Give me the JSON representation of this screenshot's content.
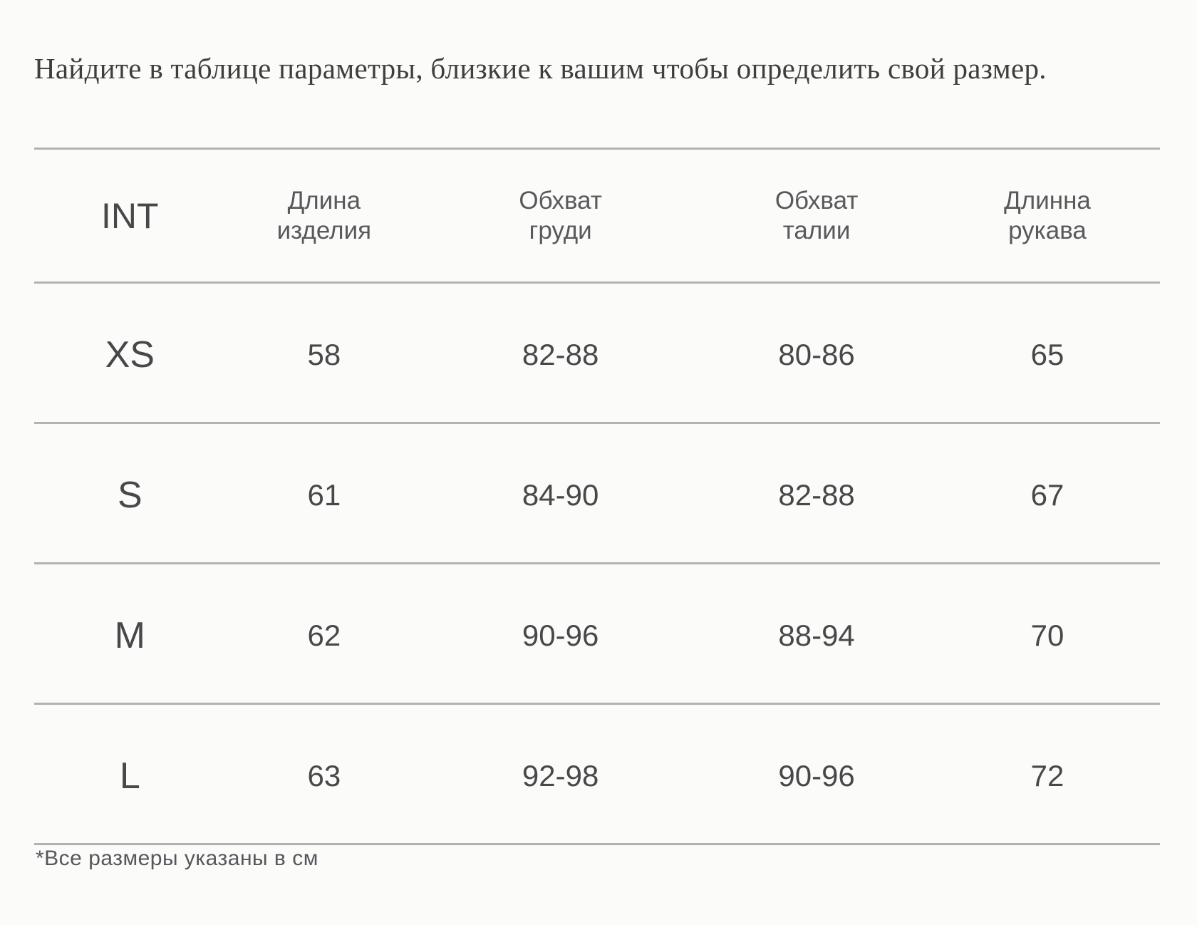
{
  "title": "Найдите в таблице параметры, близкие к вашим чтобы определить свой размер.",
  "table": {
    "columns": [
      {
        "line1": "INT",
        "line2": ""
      },
      {
        "line1": "Длина",
        "line2": "изделия"
      },
      {
        "line1": "Обхват",
        "line2": "груди"
      },
      {
        "line1": "Обхват",
        "line2": "талии"
      },
      {
        "line1": "Длинна",
        "line2": "рукава"
      }
    ],
    "rows": [
      {
        "size": "XS",
        "values": [
          "58",
          "82-88",
          "80-86",
          "65"
        ]
      },
      {
        "size": "S",
        "values": [
          "61",
          "84-90",
          "82-88",
          "67"
        ]
      },
      {
        "size": "M",
        "values": [
          "62",
          "90-96",
          "88-94",
          "70"
        ]
      },
      {
        "size": "L",
        "values": [
          "63",
          "92-98",
          "90-96",
          "72"
        ]
      }
    ]
  },
  "footnote": "*Все размеры указаны в см",
  "colors": {
    "background": "#fbfbfa",
    "rule": "#b6b1ae",
    "title_text": "#3e3e3e",
    "header_text": "#59595b",
    "cell_text": "#48484a",
    "footnote_text": "#55575a"
  }
}
